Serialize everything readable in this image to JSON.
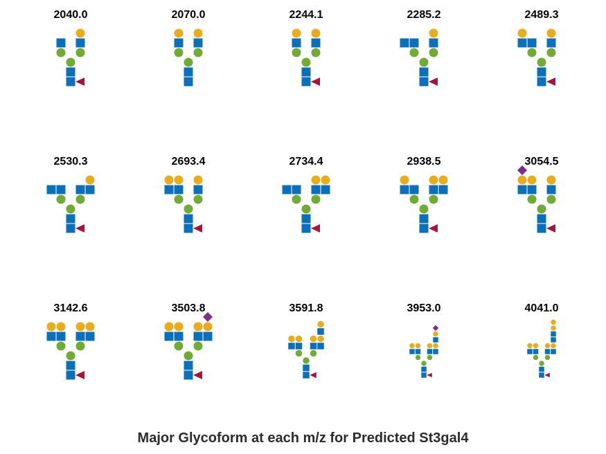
{
  "title": "Major Glycoform at each m/z for Predicted St3gal4",
  "colors": {
    "hexnac_square": "#0c6fb9",
    "mannose_circle": "#72aa36",
    "galactose_circle": "#e8ac1d",
    "fucose_triangle": "#a8133a",
    "sialic_diamond": "#7c2e8e"
  },
  "glycans": [
    {
      "mz": "2040.0",
      "left_sq": 1,
      "right_sq": 1,
      "left_gal": 0,
      "right_gal": 1,
      "sia": 0,
      "fucose": true
    },
    {
      "mz": "2070.0",
      "left_sq": 1,
      "right_sq": 1,
      "left_gal": 1,
      "right_gal": 1,
      "sia": 0,
      "fucose": false
    },
    {
      "mz": "2244.1",
      "left_sq": 1,
      "right_sq": 1,
      "left_gal": 1,
      "right_gal": 1,
      "sia": 0,
      "fucose": true
    },
    {
      "mz": "2285.2",
      "left_sq": 2,
      "right_sq": 1,
      "left_gal": 0,
      "right_gal": 1,
      "sia": 0,
      "fucose": true
    },
    {
      "mz": "2489.3",
      "left_sq": 2,
      "right_sq": 1,
      "left_gal": 1,
      "right_gal": 1,
      "sia": 0,
      "fucose": true
    },
    {
      "mz": "2530.3",
      "left_sq": 2,
      "right_sq": 2,
      "left_gal": 0,
      "right_gal": 1,
      "sia": 0,
      "fucose": true
    },
    {
      "mz": "2693.4",
      "left_sq": 2,
      "right_sq": 1,
      "left_gal": 2,
      "right_gal": 1,
      "sia": 0,
      "fucose": true
    },
    {
      "mz": "2734.4",
      "left_sq": 2,
      "right_sq": 2,
      "left_gal": 0,
      "right_gal": 2,
      "sia": 0,
      "fucose": true
    },
    {
      "mz": "2938.5",
      "left_sq": 2,
      "right_sq": 2,
      "left_gal": 1,
      "right_gal": 2,
      "sia": 0,
      "fucose": true
    },
    {
      "mz": "3054.5",
      "left_sq": 2,
      "right_sq": 1,
      "left_gal": 2,
      "right_gal": 1,
      "sia": 1,
      "fucose": true
    },
    {
      "mz": "3142.6",
      "left_sq": 2,
      "right_sq": 2,
      "left_gal": 2,
      "right_gal": 2,
      "sia": 0,
      "fucose": true
    },
    {
      "mz": "3503.8",
      "left_sq": 2,
      "right_sq": 2,
      "left_gal": 2,
      "right_gal": 2,
      "sia": 1,
      "fucose": true
    },
    {
      "mz": "3591.8",
      "left_sq": 2,
      "right_sq": 2,
      "left_gal": 2,
      "right_gal": 2,
      "sia": 0,
      "fucose": true,
      "ext": {
        "squares": 1,
        "top": "gal"
      }
    },
    {
      "mz": "3953.0",
      "left_sq": 2,
      "right_sq": 2,
      "left_gal": 2,
      "right_gal": 2,
      "sia": 0,
      "fucose": true,
      "ext": {
        "squares": 1,
        "top": "gal_sia"
      }
    },
    {
      "mz": "4041.0",
      "left_sq": 2,
      "right_sq": 2,
      "left_gal": 2,
      "right_gal": 2,
      "sia": 0,
      "fucose": true,
      "ext": {
        "squares": 2,
        "top": "gal_gal"
      }
    }
  ]
}
